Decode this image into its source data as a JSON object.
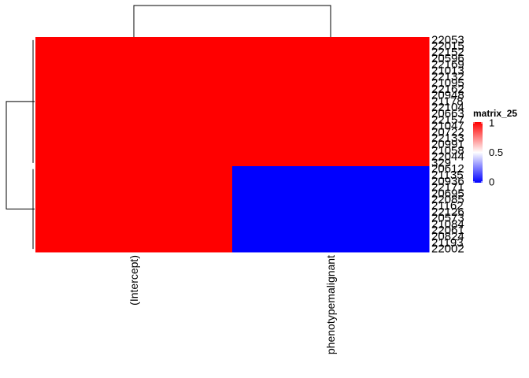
{
  "chart_data": {
    "type": "heatmap",
    "columns": [
      "(Intercept)",
      "phenotypemalignant"
    ],
    "rows_top_to_bottom": [
      {
        "label": "22053",
        "values": [
          1,
          1
        ]
      },
      {
        "label": "22015",
        "values": [
          1,
          1
        ]
      },
      {
        "label": "22152",
        "values": [
          1,
          1
        ]
      },
      {
        "label": "20596",
        "values": [
          1,
          1
        ]
      },
      {
        "label": "22169",
        "values": [
          1,
          1
        ]
      },
      {
        "label": "21013",
        "values": [
          1,
          1
        ]
      },
      {
        "label": "22132",
        "values": [
          1,
          1
        ]
      },
      {
        "label": "21095",
        "values": [
          1,
          1
        ]
      },
      {
        "label": "22162",
        "values": [
          1,
          1
        ]
      },
      {
        "label": "20948",
        "values": [
          1,
          1
        ]
      },
      {
        "label": "21178",
        "values": [
          1,
          1
        ]
      },
      {
        "label": "22104",
        "values": [
          1,
          1
        ]
      },
      {
        "label": "20663",
        "values": [
          1,
          1
        ]
      },
      {
        "label": "22157",
        "values": [
          1,
          1
        ]
      },
      {
        "label": "21047",
        "values": [
          1,
          1
        ]
      },
      {
        "label": "20722",
        "values": [
          1,
          1
        ]
      },
      {
        "label": "22133",
        "values": [
          1,
          1
        ]
      },
      {
        "label": "20991",
        "values": [
          1,
          1
        ]
      },
      {
        "label": "21058",
        "values": [
          1,
          1
        ]
      },
      {
        "label": "22044",
        "values": [
          1,
          1
        ]
      },
      {
        "label": "329",
        "values": [
          1,
          1
        ]
      },
      {
        "label": "20612",
        "values": [
          1,
          0
        ]
      },
      {
        "label": "21135",
        "values": [
          1,
          0
        ]
      },
      {
        "label": "20936",
        "values": [
          1,
          0
        ]
      },
      {
        "label": "22171",
        "values": [
          1,
          0
        ]
      },
      {
        "label": "20695",
        "values": [
          1,
          0
        ]
      },
      {
        "label": "22085",
        "values": [
          1,
          0
        ]
      },
      {
        "label": "21162",
        "values": [
          1,
          0
        ]
      },
      {
        "label": "22126",
        "values": [
          1,
          0
        ]
      },
      {
        "label": "20573",
        "values": [
          1,
          0
        ]
      },
      {
        "label": "21084",
        "values": [
          1,
          0
        ]
      },
      {
        "label": "22061",
        "values": [
          1,
          0
        ]
      },
      {
        "label": "20824",
        "values": [
          1,
          0
        ]
      },
      {
        "label": "21193",
        "values": [
          1,
          0
        ]
      },
      {
        "label": "22002",
        "values": [
          1,
          0
        ]
      }
    ],
    "color_scale": {
      "title": "matrix_25",
      "breaks": [
        0,
        0.5,
        1
      ],
      "low": "#0000FF",
      "mid": "#FFFFFF",
      "high": "#FF0000"
    },
    "legend_position": "right",
    "row_dendrogram": true,
    "column_dendrogram": true
  }
}
